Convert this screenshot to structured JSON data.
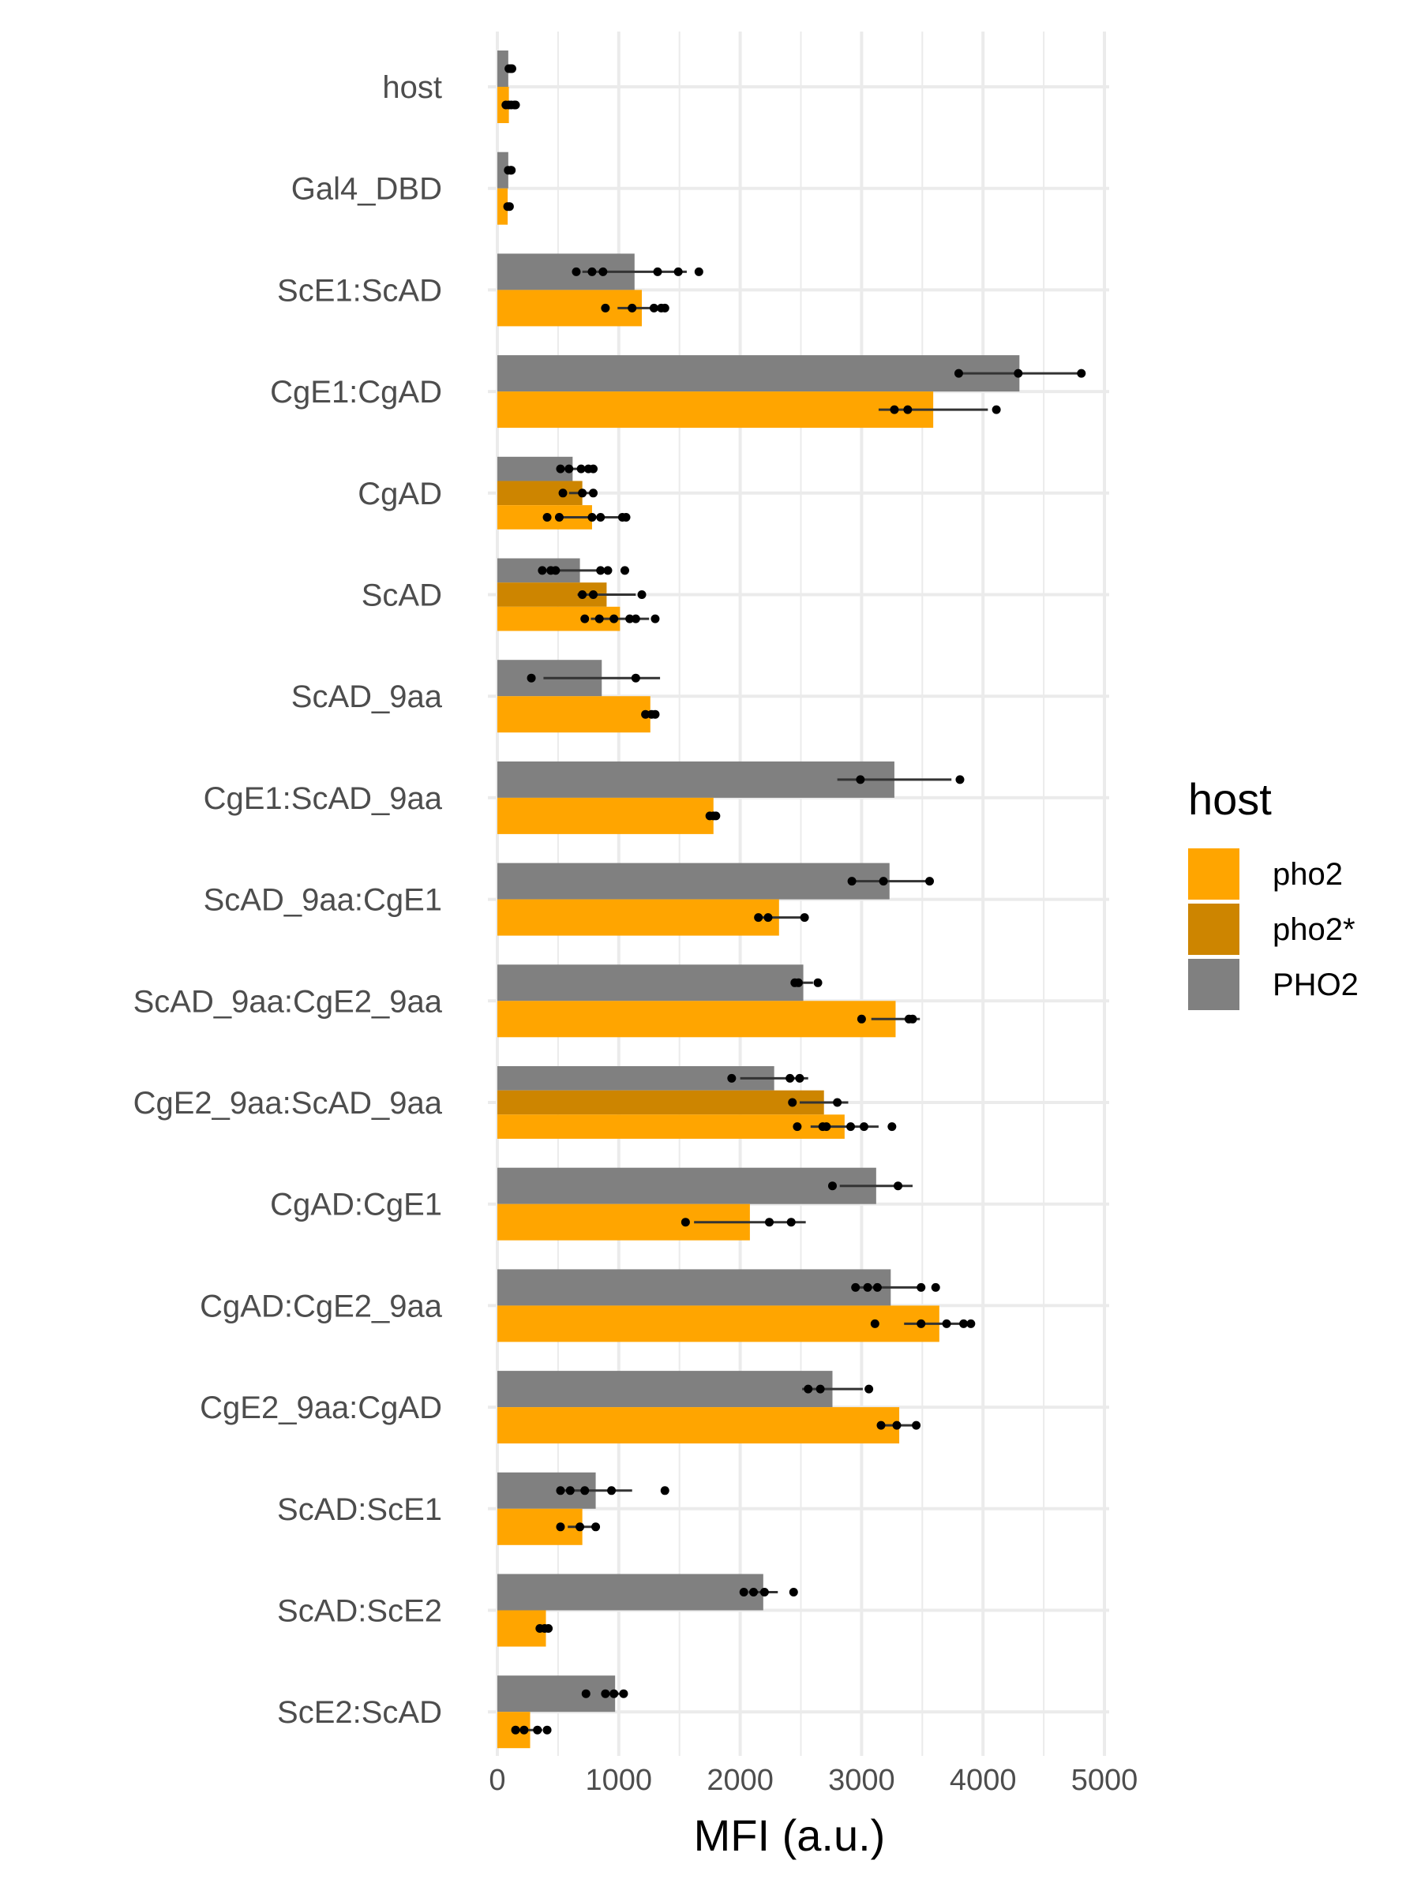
{
  "chart_data": {
    "type": "bar",
    "orientation": "horizontal",
    "xlabel": "MFI (a.u.)",
    "xlim": [
      0,
      5000
    ],
    "xticks": [
      0,
      1000,
      2000,
      3000,
      4000,
      5000
    ],
    "grid": true,
    "legend_placement": "right",
    "legend_title": "host",
    "legend": [
      {
        "key": "pho2",
        "label": "pho2",
        "color": "#FFA500"
      },
      {
        "key": "pho2s",
        "label": "pho2*",
        "color": "#CD8500"
      },
      {
        "key": "PHO2",
        "label": "PHO2",
        "color": "#808080"
      }
    ],
    "categories": [
      {
        "label": "host",
        "bars": [
          {
            "s": "PHO2",
            "v": 90,
            "e": 0,
            "pts": [
              95,
              110,
              120
            ]
          },
          {
            "s": "pho2",
            "v": 95,
            "e": 0,
            "pts": [
              70,
              95,
              115,
              140,
              150
            ]
          }
        ]
      },
      {
        "label": "Gal4_DBD",
        "bars": [
          {
            "s": "PHO2",
            "v": 90,
            "e": 0,
            "pts": [
              90,
              110,
              115
            ]
          },
          {
            "s": "pho2",
            "v": 85,
            "e": 0,
            "pts": [
              85,
              100
            ]
          }
        ]
      },
      {
        "label": "ScE1:ScAD",
        "bars": [
          {
            "s": "PHO2",
            "v": 1130,
            "e": 430,
            "pts": [
              650,
              780,
              870,
              1320,
              1490,
              1660
            ]
          },
          {
            "s": "pho2",
            "v": 1190,
            "e": 200,
            "pts": [
              890,
              1110,
              1290,
              1350,
              1380
            ]
          }
        ]
      },
      {
        "label": "CgE1:CgAD",
        "bars": [
          {
            "s": "PHO2",
            "v": 4300,
            "e": 490,
            "pts": [
              3800,
              4290,
              4810
            ]
          },
          {
            "s": "pho2",
            "v": 3590,
            "e": 450,
            "pts": [
              3270,
              3380,
              4110
            ]
          }
        ]
      },
      {
        "label": "CgAD",
        "bars": [
          {
            "s": "PHO2",
            "v": 620,
            "e": 120,
            "pts": [
              520,
              590,
              690,
              750,
              790
            ]
          },
          {
            "s": "pho2s",
            "v": 700,
            "e": 110,
            "pts": [
              540,
              700,
              790
            ]
          },
          {
            "s": "pho2",
            "v": 780,
            "e": 250,
            "pts": [
              410,
              510,
              780,
              850,
              1030,
              1060
            ]
          }
        ]
      },
      {
        "label": "ScAD",
        "bars": [
          {
            "s": "PHO2",
            "v": 680,
            "e": 240,
            "pts": [
              370,
              440,
              480,
              850,
              910,
              1050
            ]
          },
          {
            "s": "pho2s",
            "v": 900,
            "e": 240,
            "pts": [
              700,
              790,
              1190
            ]
          },
          {
            "s": "pho2",
            "v": 1010,
            "e": 240,
            "pts": [
              720,
              840,
              960,
              1090,
              1140,
              1300
            ]
          }
        ]
      },
      {
        "label": "ScAD_9aa",
        "bars": [
          {
            "s": "PHO2",
            "v": 860,
            "e": 480,
            "pts": [
              280,
              1140
            ]
          },
          {
            "s": "pho2",
            "v": 1260,
            "e": 60,
            "pts": [
              1220,
              1270,
              1300
            ]
          }
        ]
      },
      {
        "label": "CgE1:ScAD_9aa",
        "bars": [
          {
            "s": "PHO2",
            "v": 3270,
            "e": 470,
            "pts": [
              2990,
              3810
            ]
          },
          {
            "s": "pho2",
            "v": 1780,
            "e": 40,
            "pts": [
              1750,
              1780,
              1800
            ]
          }
        ]
      },
      {
        "label": "ScAD_9aa:CgE1",
        "bars": [
          {
            "s": "PHO2",
            "v": 3230,
            "e": 330,
            "pts": [
              2920,
              3180,
              3560
            ]
          },
          {
            "s": "pho2",
            "v": 2320,
            "e": 200,
            "pts": [
              2150,
              2230,
              2530
            ]
          }
        ]
      },
      {
        "label": "ScAD_9aa:CgE2_9aa",
        "bars": [
          {
            "s": "PHO2",
            "v": 2520,
            "e": 80,
            "pts": [
              2450,
              2480,
              2640
            ]
          },
          {
            "s": "pho2",
            "v": 3280,
            "e": 200,
            "pts": [
              3000,
              3390,
              3420
            ]
          }
        ]
      },
      {
        "label": "CgE2_9aa:ScAD_9aa",
        "bars": [
          {
            "s": "PHO2",
            "v": 2280,
            "e": 280,
            "pts": [
              1930,
              2410,
              2490
            ]
          },
          {
            "s": "pho2s",
            "v": 2690,
            "e": 200,
            "pts": [
              2430,
              2800
            ]
          },
          {
            "s": "pho2",
            "v": 2860,
            "e": 280,
            "pts": [
              2470,
              2680,
              2710,
              2910,
              3020,
              3250
            ]
          }
        ]
      },
      {
        "label": "CgAD:CgE1",
        "bars": [
          {
            "s": "PHO2",
            "v": 3120,
            "e": 300,
            "pts": [
              2760,
              3300
            ]
          },
          {
            "s": "pho2",
            "v": 2080,
            "e": 460,
            "pts": [
              1550,
              2240,
              2420
            ]
          }
        ]
      },
      {
        "label": "CgAD:CgE2_9aa",
        "bars": [
          {
            "s": "PHO2",
            "v": 3240,
            "e": 280,
            "pts": [
              2950,
              3050,
              3130,
              3490,
              3610
            ]
          },
          {
            "s": "pho2",
            "v": 3640,
            "e": 290,
            "pts": [
              3110,
              3490,
              3700,
              3840,
              3900
            ]
          }
        ]
      },
      {
        "label": "CgE2_9aa:CgAD",
        "bars": [
          {
            "s": "PHO2",
            "v": 2760,
            "e": 250,
            "pts": [
              2560,
              2660,
              3060
            ]
          },
          {
            "s": "pho2",
            "v": 3310,
            "e": 150,
            "pts": [
              3160,
              3290,
              3450
            ]
          }
        ]
      },
      {
        "label": "ScAD:ScE1",
        "bars": [
          {
            "s": "PHO2",
            "v": 810,
            "e": 300,
            "pts": [
              520,
              600,
              720,
              940,
              1380
            ]
          },
          {
            "s": "pho2",
            "v": 700,
            "e": 120,
            "pts": [
              520,
              680,
              810
            ]
          }
        ]
      },
      {
        "label": "ScAD:ScE2",
        "bars": [
          {
            "s": "PHO2",
            "v": 2190,
            "e": 120,
            "pts": [
              2030,
              2110,
              2200,
              2440
            ]
          },
          {
            "s": "pho2",
            "v": 400,
            "e": 50,
            "pts": [
              350,
              390,
              420
            ]
          }
        ]
      },
      {
        "label": "ScE2:ScAD",
        "bars": [
          {
            "s": "PHO2",
            "v": 970,
            "e": 80,
            "pts": [
              730,
              890,
              960,
              1040
            ]
          },
          {
            "s": "pho2",
            "v": 270,
            "e": 100,
            "pts": [
              150,
              220,
              330,
              410
            ]
          }
        ]
      }
    ]
  }
}
